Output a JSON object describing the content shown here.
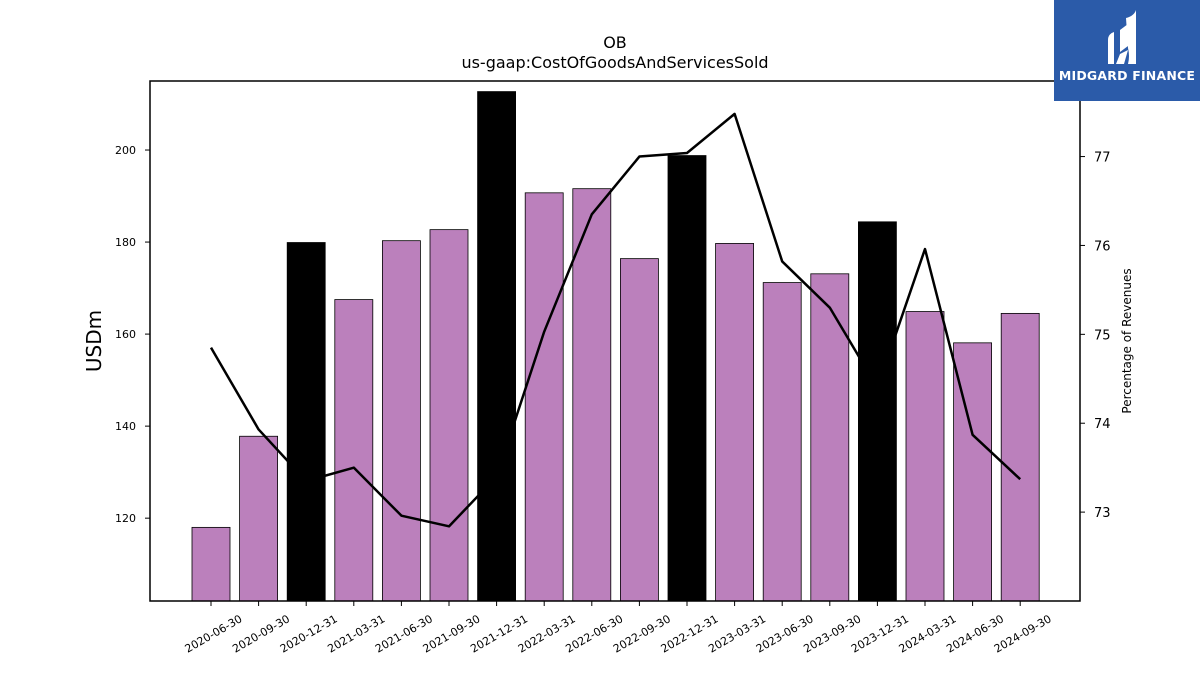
{
  "logo": {
    "text": "MIDGARD FINANCE",
    "icon": "midgard-logo-icon",
    "bg_color": "#2b5ba9"
  },
  "chart_data": {
    "type": "bar",
    "title": "OB",
    "subtitle": "us-gaap:CostOfGoodsAndServicesSold",
    "ylabel": "USDm",
    "ylabel_right": "Percentage of Revenues",
    "ylim": [
      102,
      215
    ],
    "ylim_right": [
      72,
      77.85
    ],
    "yticks": [
      120,
      140,
      160,
      180,
      200
    ],
    "yticks_right": [
      73,
      74,
      75,
      76,
      77
    ],
    "grid": false,
    "categories": [
      "2020-06-30",
      "2020-09-30",
      "2020-12-31",
      "2021-03-31",
      "2021-06-30",
      "2021-09-30",
      "2021-12-31",
      "2022-03-31",
      "2022-06-30",
      "2022-09-30",
      "2022-12-31",
      "2023-03-31",
      "2023-06-30",
      "2023-09-30",
      "2023-12-31",
      "2024-03-31",
      "2024-06-30",
      "2024-09-30"
    ],
    "series": [
      {
        "type": "bar",
        "axis": "left",
        "values": [
          118.0,
          137.8,
          179.9,
          167.5,
          180.3,
          182.7,
          212.7,
          190.7,
          191.6,
          176.4,
          198.8,
          179.7,
          171.2,
          173.1,
          184.4,
          164.9,
          158.1,
          164.5
        ],
        "colors": [
          "#bb80bc",
          "#bb80bc",
          "#000000",
          "#bb80bc",
          "#bb80bc",
          "#bb80bc",
          "#000000",
          "#bb80bc",
          "#bb80bc",
          "#bb80bc",
          "#000000",
          "#bb80bc",
          "#bb80bc",
          "#bb80bc",
          "#000000",
          "#bb80bc",
          "#bb80bc",
          "#bb80bc"
        ]
      },
      {
        "type": "line",
        "axis": "right",
        "color": "#000000",
        "values": [
          74.85,
          73.93,
          73.35,
          73.5,
          72.96,
          72.84,
          73.4,
          75.03,
          76.35,
          77.0,
          77.04,
          77.48,
          75.82,
          75.3,
          74.4,
          75.96,
          73.87,
          73.37
        ]
      }
    ]
  }
}
